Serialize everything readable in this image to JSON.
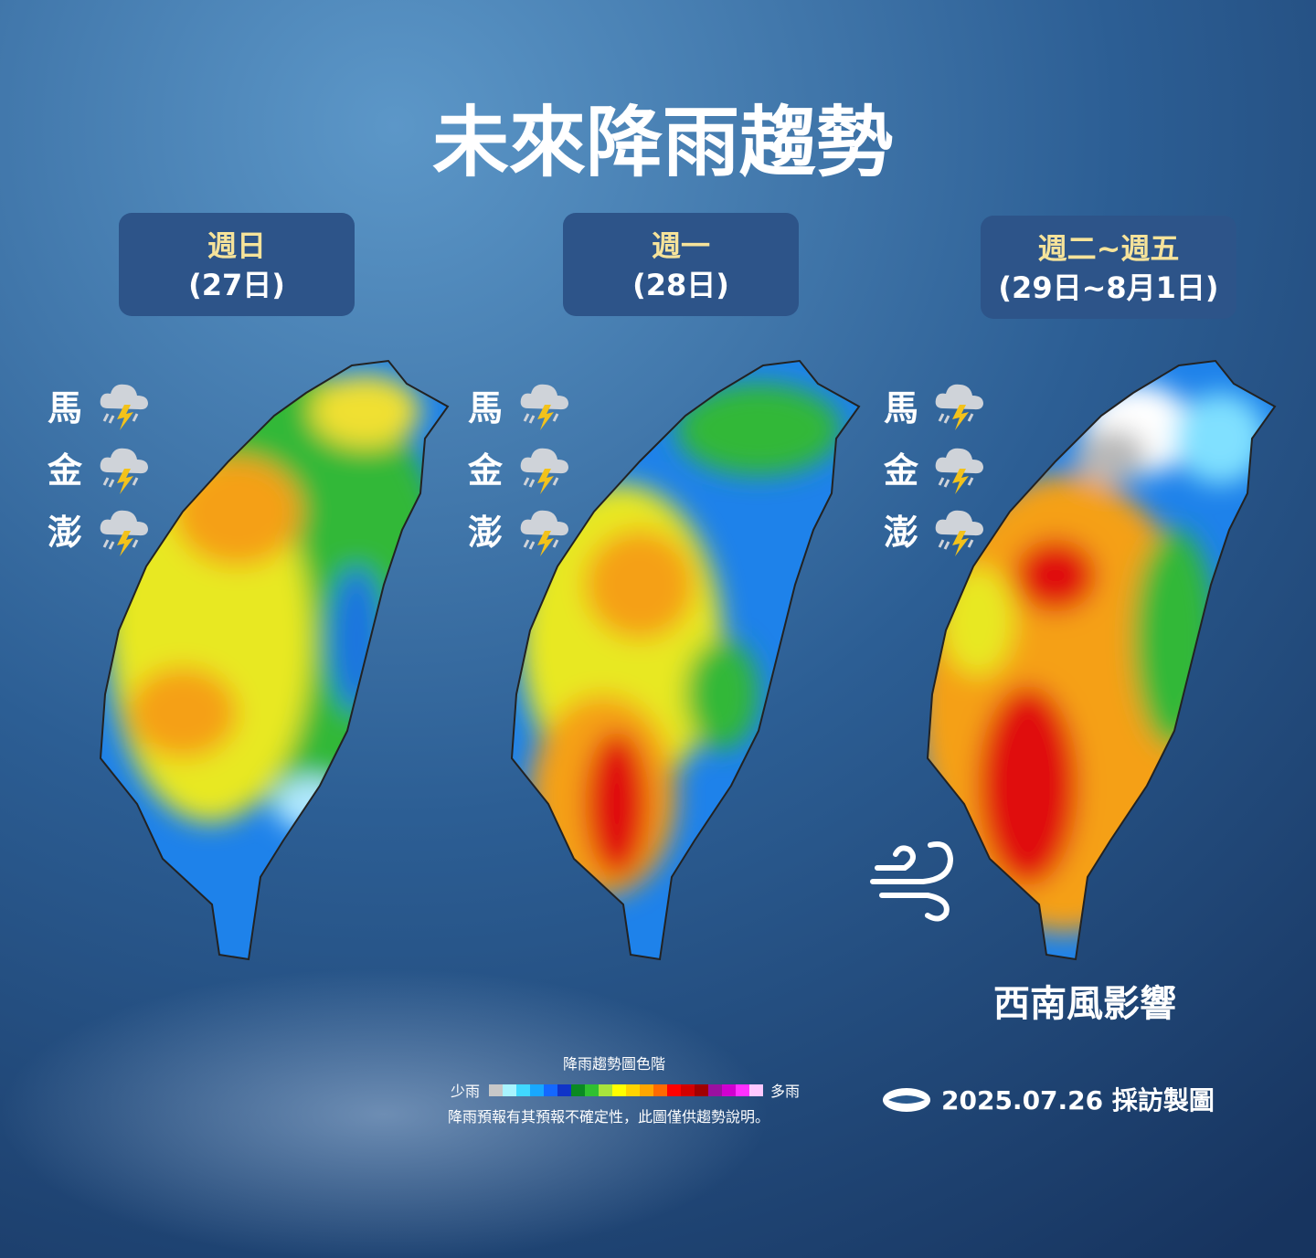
{
  "title": "未來降雨趨勢",
  "panels": [
    {
      "day": "週日",
      "date": "(27日)",
      "islands": [
        "馬",
        "金",
        "澎"
      ]
    },
    {
      "day": "週一",
      "date": "(28日)",
      "islands": [
        "馬",
        "金",
        "澎"
      ]
    },
    {
      "day": "週二~週五",
      "date": "(29日~8月1日)",
      "islands": [
        "馬",
        "金",
        "澎"
      ]
    }
  ],
  "annotation": "西南風影響",
  "legend": {
    "title": "降雨趨勢圖色階",
    "low": "少雨",
    "high": "多雨",
    "colors": [
      "#c8c8c8",
      "#a8f4ff",
      "#40d8ff",
      "#18a8ff",
      "#1468ff",
      "#1034c8",
      "#0a8a22",
      "#30c030",
      "#a8e43c",
      "#ffff00",
      "#ffd400",
      "#ffa600",
      "#ff6a00",
      "#ff0000",
      "#d20000",
      "#a00000",
      "#9a10a0",
      "#d000d0",
      "#ff30ff",
      "#ffc8ff"
    ],
    "note": "降雨預報有其預報不確定性，此圖僅供趨勢說明。"
  },
  "footer": {
    "text": "2025.07.26 採訪製圖"
  }
}
